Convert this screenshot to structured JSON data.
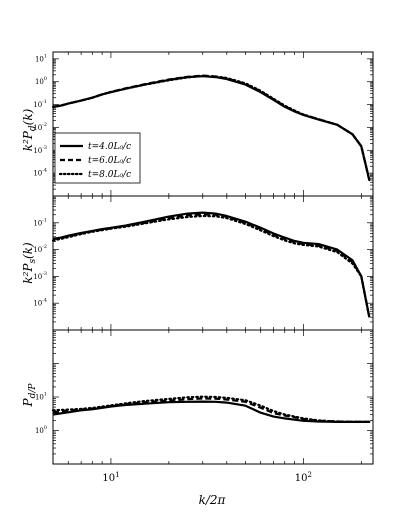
{
  "chart_data": {
    "type": "line",
    "layout": "three vertically stacked panels sharing a logarithmic x-axis",
    "xlabel": "k/2π",
    "xscale": "log",
    "xlim": [
      5,
      230
    ],
    "x_tick_labels": [
      {
        "value": 10,
        "base": "10",
        "exp": "1"
      },
      {
        "value": 100,
        "base": "10",
        "exp": "2"
      }
    ],
    "legend": {
      "panel": 0,
      "placement": "lower-left",
      "entries": [
        {
          "label": "t=4.0L₀/c",
          "style": "solid"
        },
        {
          "label": "t=6.0L₀/c",
          "style": "dashed"
        },
        {
          "label": "t=8.0L₀/c",
          "style": "dotted"
        }
      ]
    },
    "colors": {
      "lines": "#000000",
      "background": "#ffffff"
    },
    "panels": [
      {
        "ylabel": "k²P_d(k)",
        "yscale": "log",
        "ylim": [
          1e-05,
          20
        ],
        "y_tick_labels": [
          {
            "value": 10,
            "base": "10",
            "exp": "1"
          },
          {
            "value": 1,
            "base": "10",
            "exp": "0"
          },
          {
            "value": 0.1,
            "base": "10",
            "exp": "-1"
          },
          {
            "value": 0.01,
            "base": "10",
            "exp": "-2"
          },
          {
            "value": 0.001,
            "base": "10",
            "exp": "-3"
          },
          {
            "value": 0.0001,
            "base": "10",
            "exp": "-4"
          }
        ],
        "series": [
          {
            "name": "t=4.0L₀/c",
            "style": "solid",
            "x": [
              5,
              5.5,
              6,
              7,
              8,
              9,
              10,
              12,
              15,
              20,
              25,
              30,
              35,
              40,
              50,
              60,
              70,
              80,
              90,
              100,
              120,
              150,
              180,
              200,
              220
            ],
            "y": [
              0.08,
              0.09,
              0.11,
              0.15,
              0.2,
              0.28,
              0.35,
              0.5,
              0.75,
              1.2,
              1.6,
              1.75,
              1.6,
              1.3,
              0.75,
              0.35,
              0.16,
              0.08,
              0.05,
              0.035,
              0.022,
              0.013,
              0.005,
              0.0015,
              5e-05
            ]
          },
          {
            "name": "t=6.0L₀/c",
            "style": "dashed",
            "x": [
              5,
              5.5,
              6,
              7,
              8,
              9,
              10,
              12,
              15,
              20,
              25,
              30,
              35,
              40,
              50,
              60,
              70,
              80,
              90,
              100,
              120,
              150,
              180,
              200,
              220
            ],
            "y": [
              0.08,
              0.09,
              0.11,
              0.15,
              0.2,
              0.28,
              0.36,
              0.52,
              0.78,
              1.25,
              1.65,
              1.85,
              1.7,
              1.4,
              0.8,
              0.38,
              0.17,
              0.085,
              0.052,
              0.036,
              0.023,
              0.013,
              0.005,
              0.0015,
              5e-05
            ]
          },
          {
            "name": "t=8.0L₀/c",
            "style": "dotted",
            "x": [
              5,
              5.5,
              6,
              7,
              8,
              9,
              10,
              12,
              15,
              20,
              25,
              30,
              35,
              40,
              50,
              60,
              70,
              80,
              90,
              100,
              120,
              150,
              180,
              200,
              220
            ],
            "y": [
              0.08,
              0.09,
              0.11,
              0.15,
              0.2,
              0.28,
              0.36,
              0.5,
              0.74,
              1.15,
              1.55,
              1.8,
              1.7,
              1.45,
              0.85,
              0.4,
              0.18,
              0.09,
              0.055,
              0.037,
              0.023,
              0.013,
              0.005,
              0.0015,
              5e-05
            ]
          }
        ]
      },
      {
        "ylabel": "k²P_s(k)",
        "yscale": "log",
        "ylim": [
          1e-05,
          1
        ],
        "y_tick_labels": [
          {
            "value": 0.1,
            "base": "10",
            "exp": "-1"
          },
          {
            "value": 0.01,
            "base": "10",
            "exp": "-2"
          },
          {
            "value": 0.001,
            "base": "10",
            "exp": "-3"
          },
          {
            "value": 0.0001,
            "base": "10",
            "exp": "-4"
          }
        ],
        "series": [
          {
            "name": "t=4.0L₀/c",
            "style": "solid",
            "x": [
              5,
              5.5,
              6,
              7,
              8,
              9,
              10,
              12,
              15,
              20,
              25,
              30,
              35,
              40,
              50,
              60,
              70,
              80,
              90,
              100,
              120,
              150,
              180,
              200,
              220
            ],
            "y": [
              0.025,
              0.028,
              0.033,
              0.042,
              0.05,
              0.058,
              0.065,
              0.08,
              0.11,
              0.17,
              0.22,
              0.24,
              0.22,
              0.18,
              0.11,
              0.065,
              0.04,
              0.028,
              0.021,
              0.018,
              0.016,
              0.01,
              0.004,
              0.001,
              3e-05
            ]
          },
          {
            "name": "t=6.0L₀/c",
            "style": "dashed",
            "x": [
              5,
              5.5,
              6,
              7,
              8,
              9,
              10,
              12,
              15,
              20,
              25,
              30,
              35,
              40,
              50,
              60,
              70,
              80,
              90,
              100,
              120,
              150,
              180,
              200,
              220
            ],
            "y": [
              0.025,
              0.027,
              0.031,
              0.04,
              0.048,
              0.056,
              0.062,
              0.077,
              0.1,
              0.15,
              0.19,
              0.205,
              0.2,
              0.17,
              0.1,
              0.058,
              0.035,
              0.025,
              0.019,
              0.016,
              0.014,
              0.009,
              0.0035,
              0.001,
              3e-05
            ]
          },
          {
            "name": "t=8.0L₀/c",
            "style": "dotted",
            "x": [
              5,
              5.5,
              6,
              7,
              8,
              9,
              10,
              12,
              15,
              20,
              25,
              30,
              35,
              40,
              50,
              60,
              70,
              80,
              90,
              100,
              120,
              150,
              180,
              200,
              220
            ],
            "y": [
              0.022,
              0.025,
              0.029,
              0.038,
              0.046,
              0.053,
              0.06,
              0.072,
              0.095,
              0.135,
              0.165,
              0.18,
              0.175,
              0.15,
              0.09,
              0.052,
              0.032,
              0.022,
              0.017,
              0.015,
              0.013,
              0.008,
              0.003,
              0.001,
              3e-05
            ]
          }
        ]
      },
      {
        "ylabel": "P_d/P_s",
        "yscale": "log",
        "ylim": [
          0.1,
          1000
        ],
        "y_tick_labels": [
          {
            "value": 10,
            "base": "10",
            "exp": "1"
          },
          {
            "value": 1,
            "base": "10",
            "exp": "0"
          }
        ],
        "series": [
          {
            "name": "t=4.0L₀/c",
            "style": "solid",
            "x": [
              5,
              6,
              7,
              8,
              10,
              12,
              15,
              20,
              25,
              30,
              35,
              40,
              50,
              60,
              70,
              80,
              90,
              100,
              120,
              150,
              180,
              220
            ],
            "y": [
              3.0,
              3.5,
              4.0,
              4.3,
              5.2,
              5.8,
              6.3,
              7.0,
              7.2,
              7.3,
              7.2,
              6.8,
              5.5,
              3.4,
              2.6,
              2.3,
              2.1,
              1.95,
              1.85,
              1.8,
              1.8,
              1.8
            ]
          },
          {
            "name": "t=6.0L₀/c",
            "style": "dashed",
            "x": [
              5,
              6,
              7,
              8,
              10,
              12,
              15,
              20,
              25,
              30,
              35,
              40,
              50,
              60,
              70,
              80,
              90,
              100,
              120,
              150,
              180,
              220
            ],
            "y": [
              3.5,
              3.9,
              4.2,
              4.5,
              5.4,
              6.2,
              7.0,
              7.8,
              8.6,
              9.0,
              8.9,
              8.4,
              7.2,
              4.8,
              3.3,
              2.8,
              2.5,
              2.2,
              1.95,
              1.85,
              1.8,
              1.8
            ]
          },
          {
            "name": "t=8.0L₀/c",
            "style": "dotted",
            "x": [
              5,
              6,
              7,
              8,
              10,
              12,
              15,
              20,
              25,
              30,
              35,
              40,
              50,
              60,
              70,
              80,
              90,
              100,
              120,
              150,
              180,
              220
            ],
            "y": [
              4.0,
              4.2,
              4.4,
              4.7,
              5.6,
              6.5,
              7.6,
              8.8,
              9.8,
              10.2,
              10.0,
              9.4,
              8.0,
              5.5,
              3.8,
              3.0,
              2.6,
              2.3,
              2.0,
              1.85,
              1.8,
              1.8
            ]
          }
        ]
      }
    ]
  }
}
